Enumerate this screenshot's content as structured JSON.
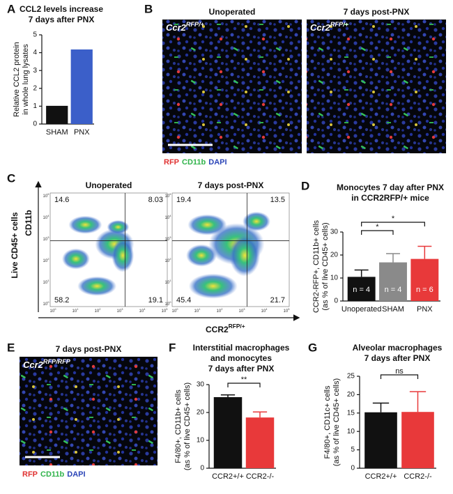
{
  "panel_letters": [
    "A",
    "B",
    "C",
    "D",
    "E",
    "F",
    "G"
  ],
  "chart_data": [
    {
      "type": "bar",
      "title_lines": [
        "CCL2 levels increase",
        "7 days after PNX"
      ],
      "y_label_lines": [
        "Relative CCL2 protein",
        "in whole lung lysates"
      ],
      "categories": [
        "SHAM",
        "PNX"
      ],
      "values": [
        1.02,
        4.18
      ],
      "colors": [
        "#111111",
        "#3b5fc9"
      ],
      "ylim": [
        0,
        5
      ],
      "yticks": [
        0,
        1,
        2,
        3,
        4,
        5
      ]
    },
    {
      "type": "bar",
      "title_lines": [
        "Monocytes 7 day after PNX",
        "in CCR2RFP/+ mice"
      ],
      "y_label_lines": [
        "CCR2-RFP+, CD11b+ cells",
        "(as % of live CD45+ cells)"
      ],
      "categories": [
        "Unoperated",
        "SHAM",
        "PNX"
      ],
      "values": [
        10.5,
        16.8,
        18.3
      ],
      "errors": [
        3,
        3.8,
        5.5
      ],
      "colors": [
        "#111111",
        "#8a8a8a",
        "#e8393a"
      ],
      "bar_annotations": [
        "n = 4",
        "n = 4",
        "n = 6"
      ],
      "significance": [
        {
          "from": 0,
          "to": 1,
          "label": "*"
        },
        {
          "from": 0,
          "to": 2,
          "label": "*"
        }
      ],
      "ylim": [
        0,
        30
      ],
      "yticks": [
        0,
        10,
        20,
        30
      ]
    },
    {
      "type": "bar",
      "title_lines": [
        "Interstitial macrophages",
        "and monocytes",
        "7 days after PNX"
      ],
      "y_label_lines": [
        "F4/80+, CD11b+ cells",
        "(as % of live CD45+ cells)"
      ],
      "categories": [
        "CCR2+/+",
        "CCR2-/-"
      ],
      "values": [
        25.5,
        18.2
      ],
      "errors": [
        0.8,
        2
      ],
      "colors": [
        "#111111",
        "#e8393a"
      ],
      "significance": [
        {
          "from": 0,
          "to": 1,
          "label": "**"
        }
      ],
      "ylim": [
        0,
        30
      ],
      "yticks": [
        0,
        10,
        20,
        30
      ]
    },
    {
      "type": "bar",
      "title_lines": [
        "Alveolar macrophages",
        "7 days after PNX"
      ],
      "y_label_lines": [
        "F4/80+, CD11c+ cells",
        "(as % of live CD45+ cells)"
      ],
      "categories": [
        "CCR2+/+",
        "CCR2-/-"
      ],
      "values": [
        15.2,
        15.3
      ],
      "errors": [
        2.5,
        5.5
      ],
      "colors": [
        "#111111",
        "#e8393a"
      ],
      "significance": [
        {
          "from": 0,
          "to": 1,
          "label": "ns"
        }
      ],
      "ylim": [
        0,
        25
      ],
      "yticks": [
        0,
        5,
        10,
        15,
        20,
        25
      ]
    }
  ],
  "micrographs": {
    "B": {
      "titles": [
        "Unoperated",
        "7 days post-PNX"
      ],
      "genotype": {
        "base": "Ccr2",
        "sup": "RFP/+"
      }
    },
    "E": {
      "titles": [
        "7 days post-PNX"
      ],
      "genotype": {
        "base": "Ccr2",
        "sup": "RFP/RFP"
      }
    },
    "stain": [
      {
        "text": "RFP",
        "color": "#e03232"
      },
      {
        "text": "CD11b",
        "color": "#2fb34a"
      },
      {
        "text": "DAPI",
        "color": "#2b45b8"
      }
    ]
  },
  "flow": {
    "titles": [
      "Unoperated",
      "7 days post-PNX"
    ],
    "y_label": "CD11b",
    "y_group_label": "Live CD45+ cells",
    "x_label": {
      "base": "CCR2",
      "sup": "RFP/+"
    },
    "quadrants": [
      [
        "14.6",
        "8.03",
        "58.2",
        "19.1"
      ],
      [
        "19.4",
        "13.5",
        "45.4",
        "21.7"
      ]
    ],
    "tick_base": "10",
    "tick_exponents": [
      "0",
      "1",
      "2",
      "3",
      "4",
      "5"
    ]
  }
}
